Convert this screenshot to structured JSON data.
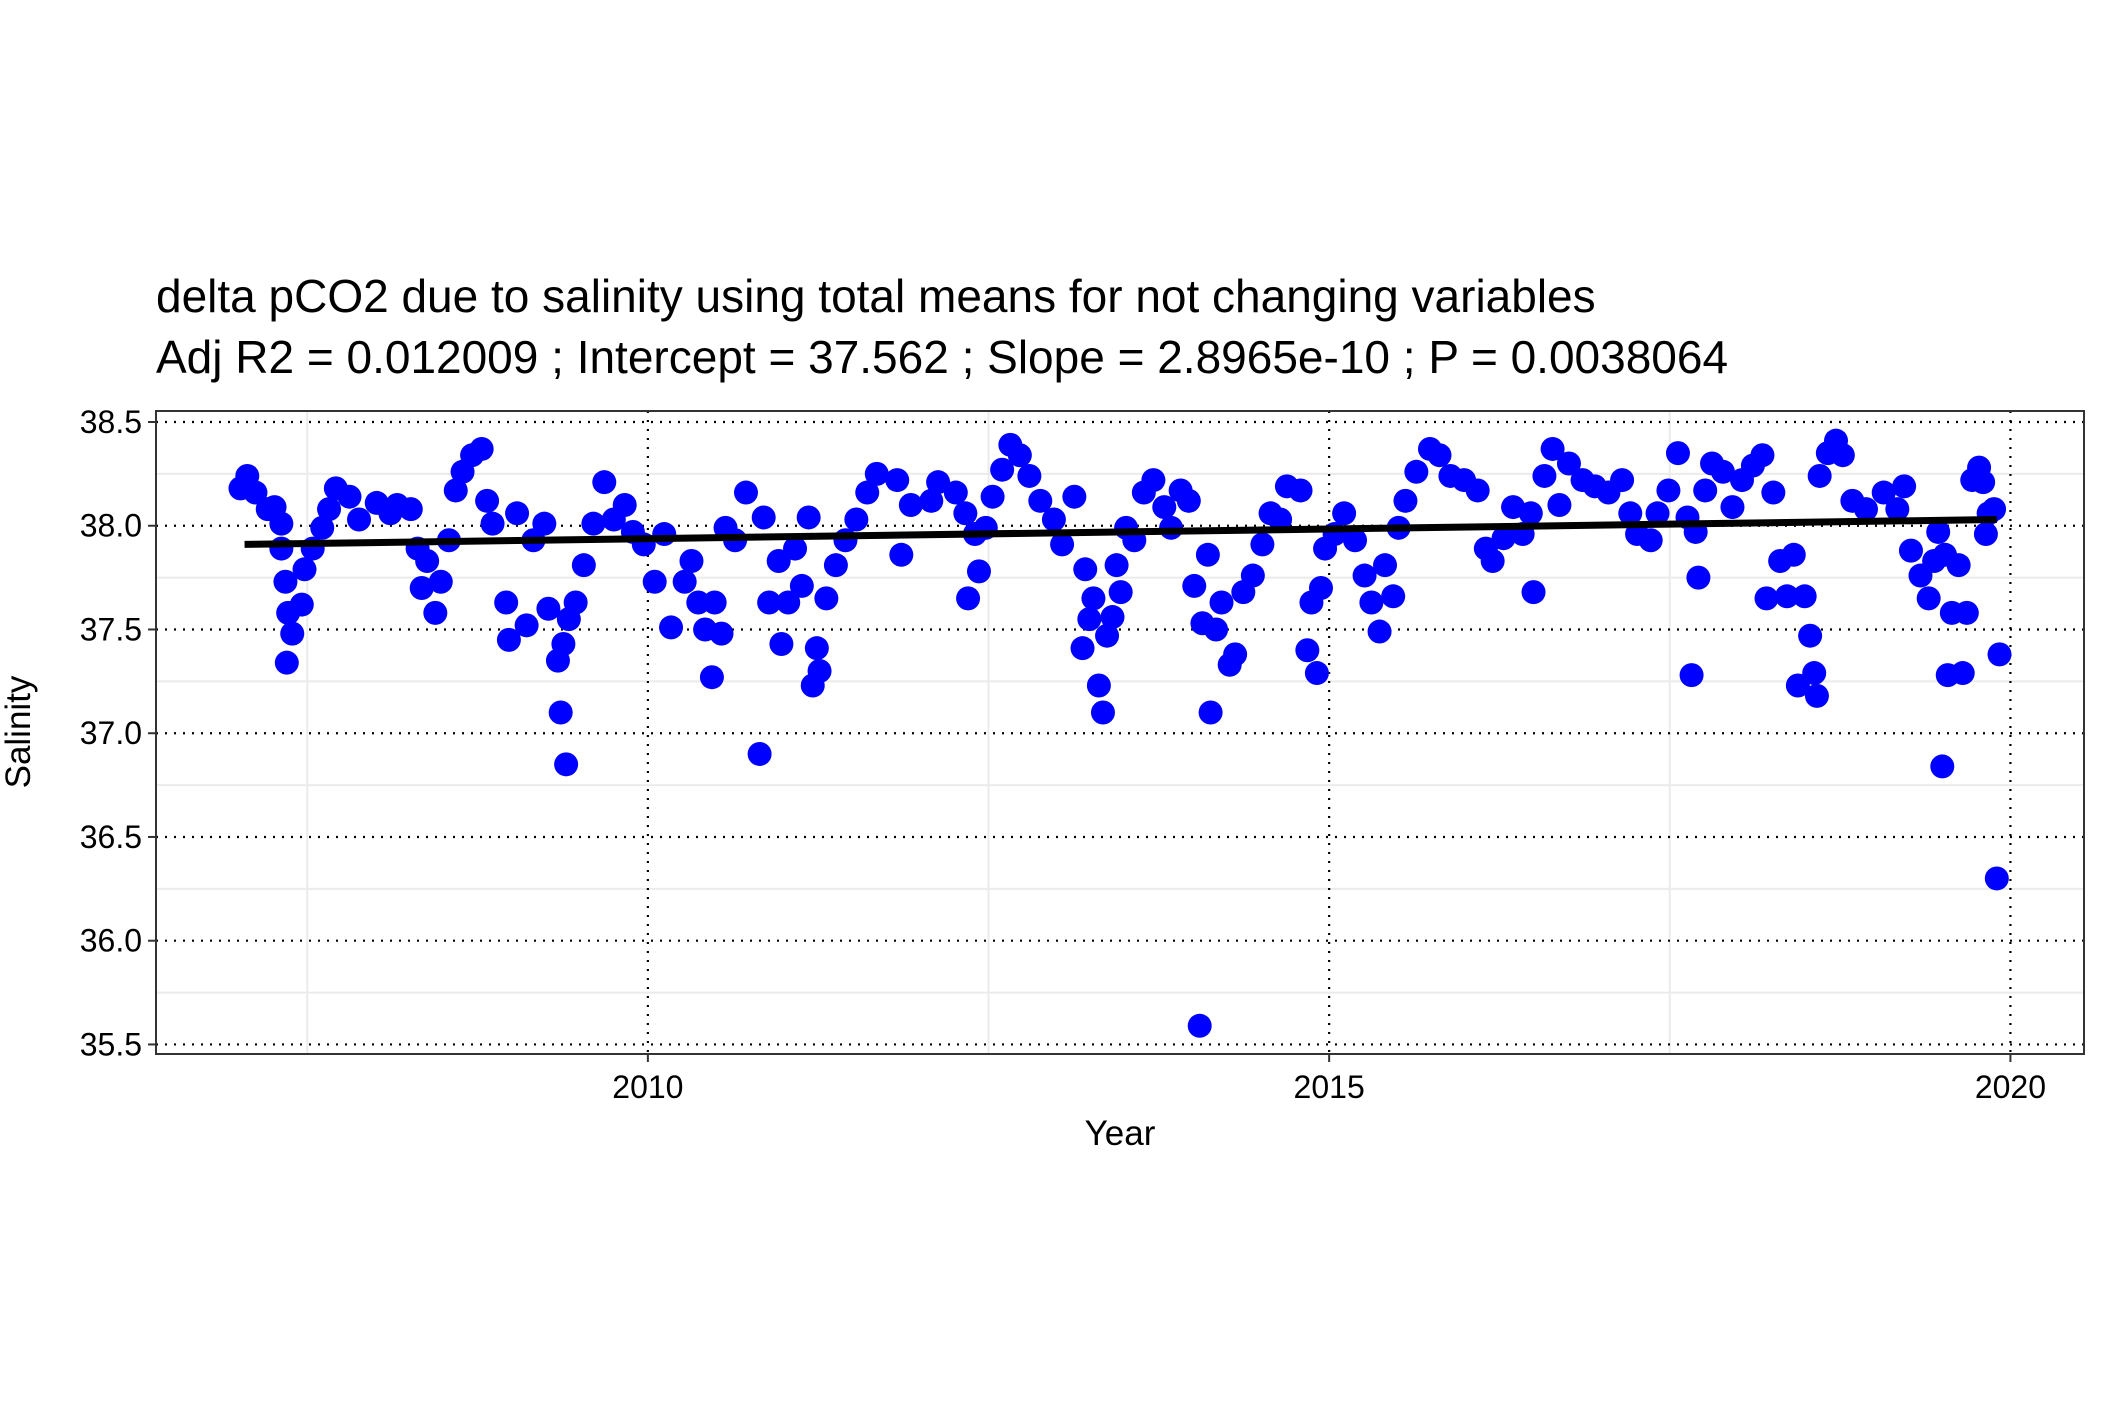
{
  "chart_data": {
    "type": "scatter",
    "title": "delta pCO2 due to salinity using total means for not changing variables",
    "subtitle": "Adj R2 =  0.012009 ; Intercept = 37.562 ; Slope = 2.8965e-10 ; P = 0.0038064",
    "xlabel": "Year",
    "ylabel": "Salinity",
    "xlim": [
      2006.39,
      2020.54
    ],
    "ylim": [
      35.454,
      38.553
    ],
    "xticks": [
      2010,
      2015,
      2020
    ],
    "yticks": [
      35.5,
      {
        "value": 36,
        "label": "36.0"
      },
      36.5,
      {
        "value": 37,
        "label": "37.0"
      },
      37.5,
      {
        "value": 38,
        "label": "38.0"
      },
      38.5
    ],
    "minor_xticks": [
      2007.5,
      2012.5,
      2017.5
    ],
    "minor_yticks": [
      35.75,
      36.25,
      36.75,
      37.25,
      37.75,
      38.25
    ],
    "grid": true,
    "series": [
      {
        "color": "#0000ff",
        "x": [
          2007.01,
          2007.06,
          2007.12,
          2007.21,
          2007.26,
          2007.31,
          2007.31,
          2007.34,
          2007.35,
          2007.36,
          2007.39,
          2007.46,
          2007.48,
          2007.54,
          2007.61,
          2007.66,
          2007.71,
          2007.81,
          2007.88,
          2008.01,
          2008.11,
          2008.16,
          2008.26,
          2008.31,
          2008.34,
          2008.38,
          2008.44,
          2008.48,
          2008.54,
          2008.59,
          2008.64,
          2008.71,
          2008.78,
          2008.82,
          2008.86,
          2008.96,
          2008.98,
          2009.04,
          2009.11,
          2009.16,
          2009.24,
          2009.27,
          2009.34,
          2009.36,
          2009.38,
          2009.4,
          2009.42,
          2009.47,
          2009.53,
          2009.6,
          2009.68,
          2009.75,
          2009.83,
          2009.89,
          2009.97,
          2010.05,
          2010.12,
          2010.17,
          2010.27,
          2010.32,
          2010.37,
          2010.42,
          2010.47,
          2010.49,
          2010.54,
          2010.57,
          2010.64,
          2010.72,
          2010.82,
          2010.85,
          2010.89,
          2010.96,
          2010.98,
          2011.03,
          2011.08,
          2011.13,
          2011.18,
          2011.21,
          2011.24,
          2011.26,
          2011.31,
          2011.38,
          2011.45,
          2011.53,
          2011.61,
          2011.68,
          2011.83,
          2011.86,
          2011.93,
          2012.08,
          2012.13,
          2012.26,
          2012.33,
          2012.35,
          2012.4,
          2012.43,
          2012.48,
          2012.53,
          2012.6,
          2012.66,
          2012.73,
          2012.8,
          2012.88,
          2012.98,
          2013.04,
          2013.13,
          2013.19,
          2013.21,
          2013.24,
          2013.27,
          2013.31,
          2013.34,
          2013.37,
          2013.41,
          2013.44,
          2013.47,
          2013.51,
          2013.57,
          2013.64,
          2013.71,
          2013.79,
          2013.84,
          2013.91,
          2013.97,
          2014.01,
          2014.05,
          2014.07,
          2014.11,
          2014.13,
          2014.17,
          2014.21,
          2014.27,
          2014.31,
          2014.37,
          2014.44,
          2014.51,
          2014.57,
          2014.64,
          2014.69,
          2014.79,
          2014.84,
          2014.87,
          2014.91,
          2014.94,
          2014.97,
          2015.04,
          2015.11,
          2015.19,
          2015.26,
          2015.31,
          2015.37,
          2015.41,
          2015.47,
          2015.51,
          2015.56,
          2015.64,
          2015.74,
          2015.81,
          2015.89,
          2015.99,
          2016.09,
          2016.15,
          2016.2,
          2016.28,
          2016.35,
          2016.42,
          2016.48,
          2016.5,
          2016.58,
          2016.64,
          2016.69,
          2016.76,
          2016.86,
          2016.95,
          2017.05,
          2017.15,
          2017.21,
          2017.26,
          2017.36,
          2017.41,
          2017.49,
          2017.56,
          2017.63,
          2017.66,
          2017.69,
          2017.71,
          2017.76,
          2017.81,
          2017.89,
          2017.96,
          2018.03,
          2018.11,
          2018.18,
          2018.21,
          2018.26,
          2018.31,
          2018.36,
          2018.41,
          2018.44,
          2018.49,
          2018.53,
          2018.56,
          2018.58,
          2018.6,
          2018.66,
          2018.72,
          2018.77,
          2018.84,
          2018.94,
          2019.07,
          2019.17,
          2019.22,
          2019.27,
          2019.34,
          2019.4,
          2019.44,
          2019.47,
          2019.5,
          2019.52,
          2019.54,
          2019.57,
          2019.62,
          2019.65,
          2019.68,
          2019.72,
          2019.77,
          2019.8,
          2019.82,
          2019.84,
          2019.88,
          2019.9,
          2019.92
        ],
        "values": [
          38.18,
          38.24,
          38.16,
          38.08,
          38.09,
          38.01,
          37.89,
          37.73,
          37.34,
          37.58,
          37.48,
          37.62,
          37.79,
          37.89,
          37.99,
          38.08,
          38.18,
          38.14,
          38.03,
          38.11,
          38.06,
          38.1,
          38.08,
          37.89,
          37.7,
          37.83,
          37.58,
          37.73,
          37.93,
          38.17,
          38.26,
          38.34,
          38.37,
          38.12,
          38.01,
          37.63,
          37.45,
          38.06,
          37.52,
          37.93,
          38.01,
          37.6,
          37.35,
          37.1,
          37.43,
          36.85,
          37.55,
          37.63,
          37.81,
          38.01,
          38.21,
          38.03,
          38.1,
          37.97,
          37.91,
          37.73,
          37.96,
          37.51,
          37.73,
          37.83,
          37.63,
          37.5,
          37.27,
          37.63,
          37.48,
          37.99,
          37.93,
          38.16,
          36.9,
          38.04,
          37.63,
          37.83,
          37.43,
          37.63,
          37.89,
          37.71,
          38.04,
          37.23,
          37.41,
          37.3,
          37.65,
          37.81,
          37.93,
          38.03,
          38.16,
          38.25,
          38.22,
          37.86,
          38.1,
          38.12,
          38.21,
          38.16,
          38.06,
          37.65,
          37.96,
          37.78,
          37.99,
          38.14,
          38.27,
          38.39,
          38.34,
          38.24,
          38.12,
          38.03,
          37.91,
          38.14,
          37.41,
          37.79,
          37.55,
          37.65,
          37.23,
          37.1,
          37.47,
          37.56,
          37.81,
          37.68,
          37.99,
          37.93,
          38.16,
          38.22,
          38.09,
          37.99,
          38.17,
          38.12,
          37.71,
          35.59,
          37.53,
          37.86,
          37.1,
          37.5,
          37.63,
          37.33,
          37.38,
          37.68,
          37.76,
          37.91,
          38.06,
          38.03,
          38.19,
          38.17,
          37.4,
          37.63,
          37.29,
          37.7,
          37.89,
          37.96,
          38.06,
          37.93,
          37.76,
          37.63,
          37.49,
          37.81,
          37.66,
          37.99,
          38.12,
          38.26,
          38.37,
          38.34,
          38.24,
          38.22,
          38.17,
          37.89,
          37.83,
          37.94,
          38.09,
          37.96,
          38.06,
          37.68,
          38.24,
          38.37,
          38.1,
          38.3,
          38.22,
          38.19,
          38.16,
          38.22,
          38.06,
          37.96,
          37.93,
          38.06,
          38.17,
          38.35,
          38.04,
          37.28,
          37.97,
          37.75,
          38.17,
          38.3,
          38.26,
          38.09,
          38.22,
          38.29,
          38.34,
          37.65,
          38.16,
          37.83,
          37.66,
          37.86,
          37.23,
          37.66,
          37.47,
          37.29,
          37.18,
          38.24,
          38.35,
          38.41,
          38.34,
          38.12,
          38.08,
          38.16,
          38.08,
          38.19,
          37.88,
          37.76,
          37.65,
          37.83,
          37.97,
          36.84,
          37.86,
          37.28,
          37.58,
          37.81,
          37.29,
          37.58,
          38.22,
          38.28,
          38.21,
          37.96,
          38.06,
          38.08,
          36.3,
          37.38
        ]
      }
    ],
    "trend": {
      "x": [
        2007.04,
        2019.9
      ],
      "values": [
        37.91,
        38.03
      ],
      "color": "#000000"
    }
  }
}
